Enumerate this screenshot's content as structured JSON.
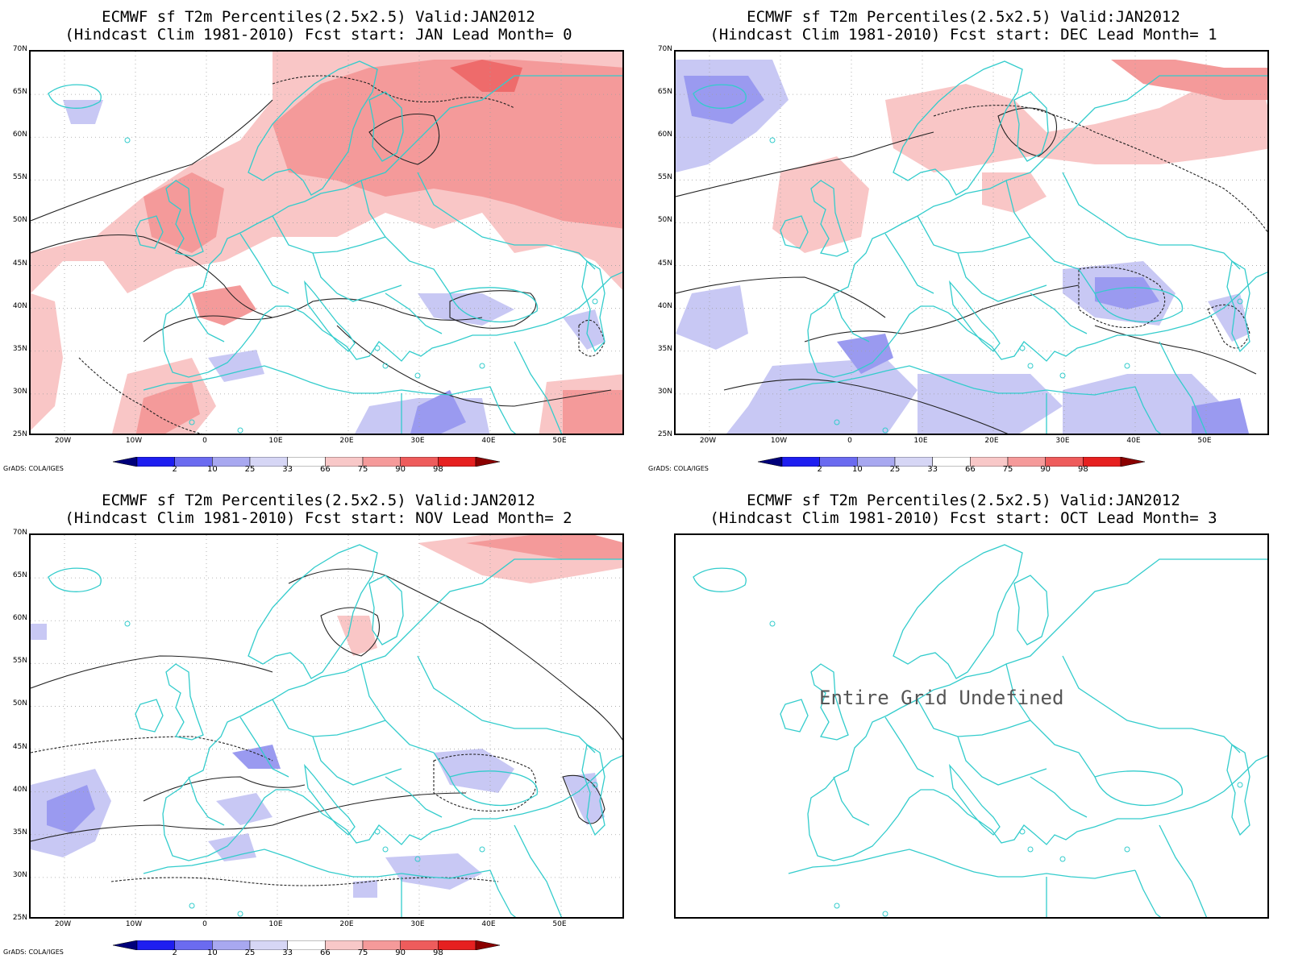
{
  "panels": [
    {
      "title1": "ECMWF sf T2m Percentiles(2.5x2.5) Valid:JAN2012",
      "title2": "(Hindcast Clim 1981-2010) Fcst start: JAN  Lead Month= 0",
      "has_data": true
    },
    {
      "title1": "ECMWF sf T2m Percentiles(2.5x2.5) Valid:JAN2012",
      "title2": "(Hindcast Clim 1981-2010) Fcst start: DEC  Lead Month= 1",
      "has_data": true
    },
    {
      "title1": "ECMWF sf T2m Percentiles(2.5x2.5) Valid:JAN2012",
      "title2": "(Hindcast Clim 1981-2010) Fcst start: NOV  Lead Month= 2",
      "has_data": true
    },
    {
      "title1": "ECMWF sf T2m Percentiles(2.5x2.5) Valid:JAN2012",
      "title2": "(Hindcast Clim 1981-2010) Fcst start: OCT  Lead Month= 3",
      "has_data": false,
      "message": "Entire Grid Undefined"
    }
  ],
  "lat_labels": [
    "70N",
    "65N",
    "60N",
    "55N",
    "50N",
    "45N",
    "40N",
    "35N",
    "30N",
    "25N"
  ],
  "lon_labels": [
    "20W",
    "10W",
    "0",
    "10E",
    "20E",
    "30E",
    "40E",
    "50E"
  ],
  "colorbar": {
    "labels": [
      "2",
      "10",
      "25",
      "33",
      "66",
      "75",
      "90",
      "98"
    ],
    "colors": [
      "#00007a",
      "#1e1ef0",
      "#6b6bf0",
      "#a8a8f0",
      "#d6d6f5",
      "#ffffff",
      "#f8c8c8",
      "#f59a9a",
      "#ee5c5c",
      "#e62020",
      "#8a0000"
    ]
  },
  "credit": "GrADS: COLA/IGES",
  "colors": {
    "coast": "#33cccc",
    "warm_light": "#f9c6c6",
    "warm_mid": "#f49a9a",
    "warm_strong": "#ee6b6b",
    "cold_light": "#c8c8f4",
    "cold_mid": "#9a9af0",
    "cold_strong": "#6a6ae8"
  }
}
